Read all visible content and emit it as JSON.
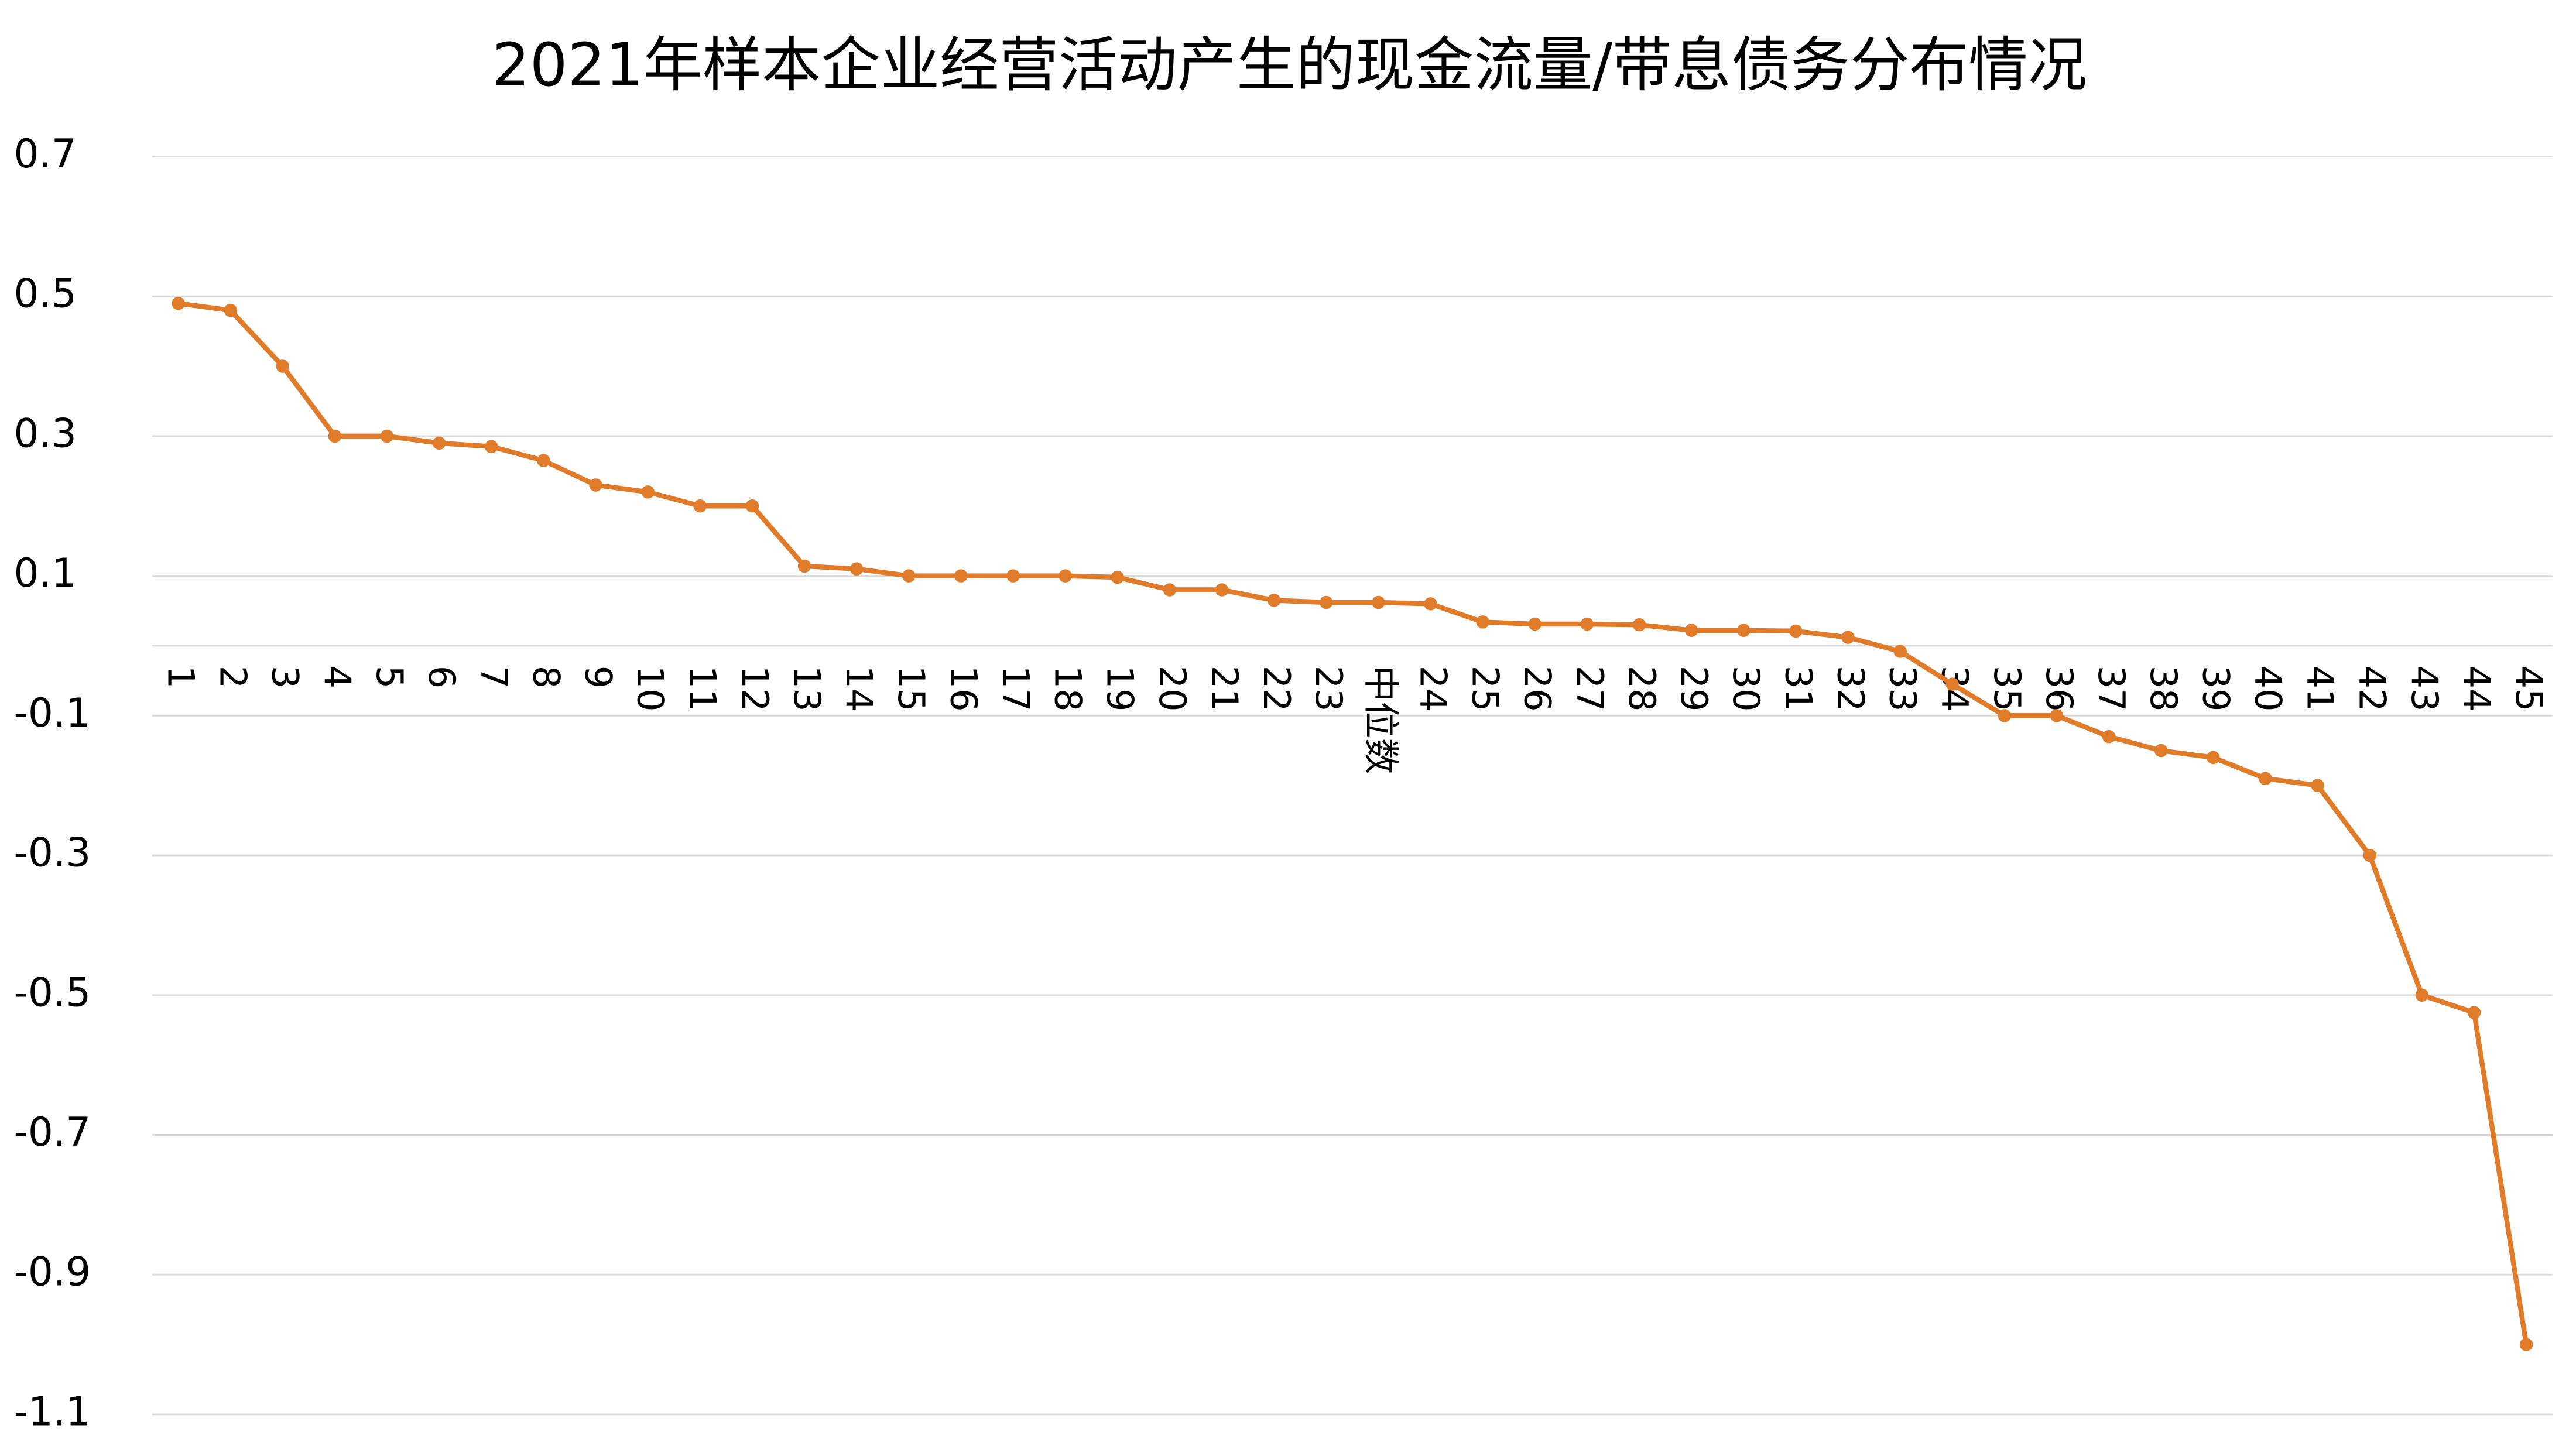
{
  "chart_data": {
    "type": "line",
    "title": "2021年样本企业经营活动产生的现金流量/带息债务分布情况",
    "categories": [
      "1",
      "2",
      "3",
      "4",
      "5",
      "6",
      "7",
      "8",
      "9",
      "10",
      "11",
      "12",
      "13",
      "14",
      "15",
      "16",
      "17",
      "18",
      "19",
      "20",
      "21",
      "22",
      "23",
      "中位数",
      "24",
      "25",
      "26",
      "27",
      "28",
      "29",
      "30",
      "31",
      "32",
      "33",
      "34",
      "35",
      "36",
      "37",
      "38",
      "39",
      "40",
      "41",
      "42",
      "43",
      "44",
      "45"
    ],
    "values": [
      0.49,
      0.48,
      0.4,
      0.3,
      0.3,
      0.29,
      0.285,
      0.265,
      0.23,
      0.22,
      0.2,
      0.2,
      0.114,
      0.11,
      0.1,
      0.1,
      0.1,
      0.1,
      0.098,
      0.08,
      0.08,
      0.065,
      0.062,
      0.062,
      0.06,
      0.034,
      0.031,
      0.031,
      0.03,
      0.022,
      0.022,
      0.021,
      0.012,
      -0.008,
      -0.055,
      -0.1,
      -0.1,
      -0.13,
      -0.15,
      -0.16,
      -0.19,
      -0.2,
      -0.3,
      -0.5,
      -0.525,
      -1.0
    ],
    "color": "#e07b2a",
    "ylim": [
      -1.1,
      0.7
    ],
    "yticks": [
      0.7,
      0.5,
      0.3,
      0.1,
      -0.1,
      -0.3,
      -0.5,
      -0.7,
      -0.9,
      -1.1
    ],
    "grid": true
  }
}
